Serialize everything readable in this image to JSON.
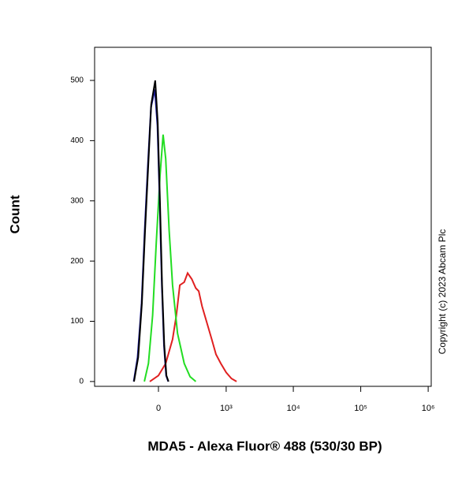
{
  "chart_data": {
    "type": "line",
    "ylabel": "Count",
    "xlabel": "MDA5 - Alexa Fluor® 488 (530/30 BP)",
    "annotation": "Copyright (c) 2023 Abcam Plc",
    "xscale": "biexponential",
    "xlim": [
      -874,
      1110000
    ],
    "xticks": [
      0,
      {
        "value": 1000,
        "label": "10³"
      },
      {
        "value": 10000,
        "label": "10⁴"
      },
      {
        "value": 100000,
        "label": "10⁵"
      },
      {
        "value": 1000000,
        "label": "10⁶"
      }
    ],
    "ylim": [
      -8,
      555
    ],
    "yticks": [
      0,
      100,
      200,
      300,
      400,
      500
    ],
    "series": [
      {
        "color": "#e02020",
        "x": [
          -60,
          0,
          50,
          100,
          130,
          159,
          200,
          234,
          280,
          330,
          370,
          420,
          496,
          600,
          700,
          830,
          1000,
          1200,
          1432
        ],
        "values": [
          0,
          10,
          30,
          70,
          110,
          160,
          165,
          180,
          170,
          155,
          150,
          125,
          100,
          70,
          45,
          30,
          15,
          5,
          0
        ]
      },
      {
        "color": "#22dd22",
        "x": [
          -100,
          -70,
          -40,
          -15,
          10,
          32,
          50,
          75,
          100,
          140,
          200,
          260,
          330
        ],
        "values": [
          0,
          30,
          110,
          230,
          340,
          410,
          370,
          250,
          160,
          80,
          30,
          8,
          0
        ]
      },
      {
        "color": "#1a1a9a",
        "x": [
          -190,
          -155,
          -122,
          -98,
          -74,
          -52,
          -25,
          -7,
          8,
          23,
          38,
          53,
          68
        ],
        "values": [
          0,
          40,
          130,
          250,
          360,
          455,
          485,
          425,
          300,
          160,
          60,
          10,
          0
        ]
      },
      {
        "color": "#000000",
        "x": [
          -187,
          -150,
          -119,
          -95,
          -71,
          -50,
          -22,
          -5,
          10,
          25,
          40,
          55,
          70
        ],
        "values": [
          0,
          40,
          130,
          250,
          360,
          460,
          500,
          430,
          300,
          160,
          60,
          10,
          0
        ]
      }
    ]
  }
}
